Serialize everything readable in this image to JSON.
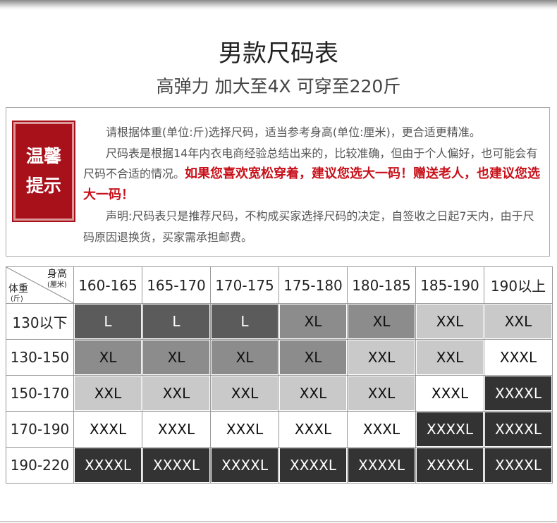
{
  "header": {
    "title": "男款尺码表",
    "subtitle": "高弹力 加大至4X 可穿至220斤"
  },
  "notice": {
    "badge": [
      "温馨",
      "提示"
    ],
    "paragraphs": [
      {
        "text": "请根据体重(单位:斤)选择尺码，适当参考身高(单位:厘米)，更合适更精准。"
      },
      {
        "text": "尺码表是根据14年内衣电商经验总结出来的，比较准确，但由于个人偏好，也可能会有尺码不合适的情况。",
        "emphasis": "如果您喜欢宽松穿着，建议您选大一码！赠送老人，也建议您选大一码！"
      },
      {
        "text": "声明:尺码表只是推荐尺码，不构成买家选择尺码的决定，自签收之日起7天内，由于尺码原因退换货，买家需承担邮费。"
      }
    ]
  },
  "table": {
    "corner": {
      "height": "身高",
      "height_unit": "(厘米)",
      "weight": "体重",
      "weight_unit": "(斤)"
    },
    "columns": [
      "160-165",
      "165-170",
      "170-175",
      "175-180",
      "180-185",
      "185-190",
      "190以上"
    ],
    "size_colors": {
      "L": "#5b5b5b",
      "XL": "#8c8c8c",
      "XXL": "#c9c9c9",
      "XXXL": "#ffffff",
      "XXXXL": "#333333"
    },
    "rows": [
      {
        "label": "130以下",
        "cells": [
          "L",
          "L",
          "L",
          "XL",
          "XL",
          "XXL",
          "XXL"
        ]
      },
      {
        "label": "130-150",
        "cells": [
          "XL",
          "XL",
          "XL",
          "XL",
          "XXL",
          "XXL",
          "XXXL"
        ]
      },
      {
        "label": "150-170",
        "cells": [
          "XXL",
          "XXL",
          "XXL",
          "XXL",
          "XXL",
          "XXXL",
          "XXXXL"
        ]
      },
      {
        "label": "170-190",
        "cells": [
          "XXXL",
          "XXXL",
          "XXXL",
          "XXXL",
          "XXXL",
          "XXXXL",
          "XXXXL"
        ]
      },
      {
        "label": "190-220",
        "cells": [
          "XXXXL",
          "XXXXL",
          "XXXXL",
          "XXXXL",
          "XXXXL",
          "XXXXL",
          "XXXXL"
        ]
      }
    ]
  }
}
